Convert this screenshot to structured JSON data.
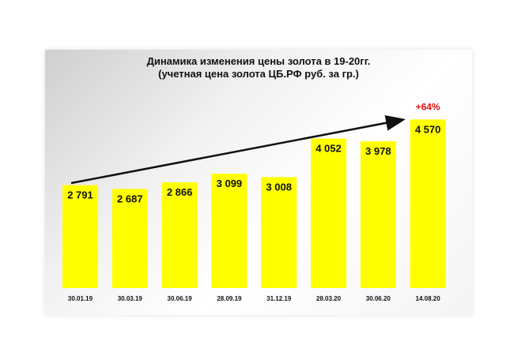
{
  "chart_data": {
    "type": "bar",
    "title": "Динамика изменения цены золота в 19-20гг.",
    "subtitle": "(учетная цена золота  ЦБ.РФ руб. за гр.)",
    "categories": [
      "30.01.19",
      "30.03.19",
      "30.06.19",
      "28.09.19",
      "31.12.19",
      "28.03.20",
      "30.06.20",
      "14.08.20"
    ],
    "values": [
      2791,
      2687,
      2866,
      3099,
      3008,
      4052,
      3978,
      4570
    ],
    "value_labels": [
      "2 791",
      "2 687",
      "2 866",
      "3 099",
      "3 008",
      "4 052",
      "3 978",
      "4 570"
    ],
    "annotation": "+64%",
    "bar_color": "#ffff00",
    "annotation_color": "#e01010",
    "ylim": [
      0,
      4600
    ],
    "grid": false,
    "legend": "none"
  }
}
